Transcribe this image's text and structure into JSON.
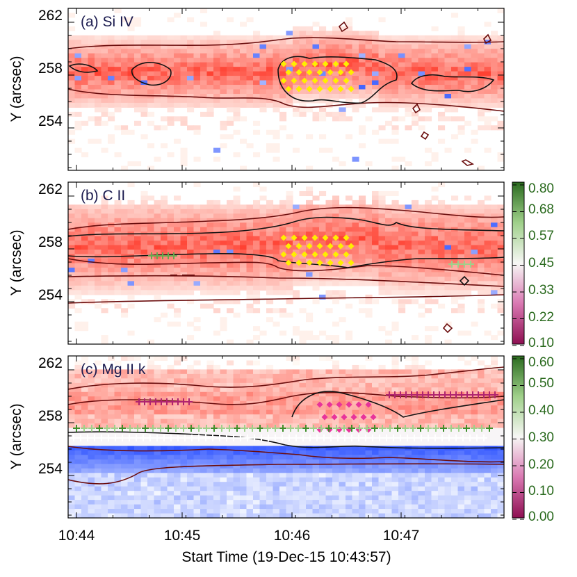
{
  "chart_data": {
    "type": "heatmap",
    "xlabel": "Start Time (19-Dec-15 10:43:57)",
    "x_ticks": [
      "10:44",
      "10:45",
      "10:46",
      "10:47"
    ],
    "panels": [
      {
        "title": "(a) Si IV",
        "ylabel": "Y (arcsec)",
        "y_ticks": [
          "262",
          "258",
          "254"
        ],
        "ylim": [
          250.5,
          262.7
        ],
        "colorbar": null
      },
      {
        "title": "(b) C II",
        "ylabel": "Y (arcsec)",
        "y_ticks": [
          "262",
          "258",
          "254"
        ],
        "ylim": [
          250.5,
          262.7
        ],
        "colorbar": {
          "ticks": [
            "0.80",
            "0.68",
            "0.57",
            "0.45",
            "0.33",
            "0.22",
            "0.10"
          ],
          "min": 0.1,
          "max": 0.8
        }
      },
      {
        "title": "(c) Mg II k",
        "ylabel": "Y (arcsec)",
        "y_ticks": [
          "262",
          "258",
          "254"
        ],
        "ylim": [
          250.5,
          262.7
        ],
        "colorbar": {
          "ticks": [
            "0.60",
            "0.50",
            "0.40",
            "0.30",
            "0.20",
            "0.10",
            "0.00"
          ],
          "min": 0.0,
          "max": 0.6
        }
      }
    ],
    "colors": {
      "red": "#e8483a",
      "blue": "#2b4fd6",
      "green": "#2e7d1e",
      "magenta": "#b0246f",
      "yellow": "#ffee00",
      "contour_black": "#111111",
      "contour_dark": "#6b0d0d"
    }
  }
}
